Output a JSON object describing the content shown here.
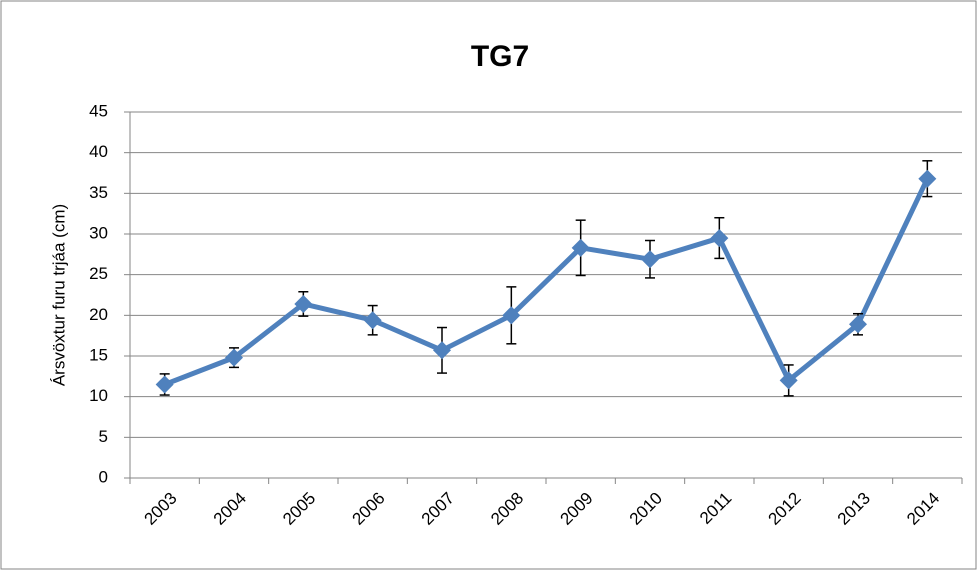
{
  "chart_data": {
    "type": "line",
    "title": "TG7",
    "y_label": "Ársvöxtur furu trjáa (cm)",
    "categories": [
      "2003",
      "2004",
      "2005",
      "2006",
      "2007",
      "2008",
      "2009",
      "2010",
      "2011",
      "2012",
      "2013",
      "2014"
    ],
    "values": [
      11.5,
      14.8,
      21.4,
      19.4,
      15.7,
      20.0,
      28.3,
      26.9,
      29.5,
      12.0,
      18.9,
      36.8
    ],
    "errors": [
      1.3,
      1.2,
      1.5,
      1.8,
      2.8,
      3.5,
      3.4,
      2.3,
      2.5,
      1.9,
      1.3,
      2.2
    ],
    "color": "#4f81bd",
    "ylim": [
      0,
      45
    ],
    "yticks": [
      0,
      5,
      10,
      15,
      20,
      25,
      30,
      35,
      40,
      45
    ],
    "grid": true
  }
}
